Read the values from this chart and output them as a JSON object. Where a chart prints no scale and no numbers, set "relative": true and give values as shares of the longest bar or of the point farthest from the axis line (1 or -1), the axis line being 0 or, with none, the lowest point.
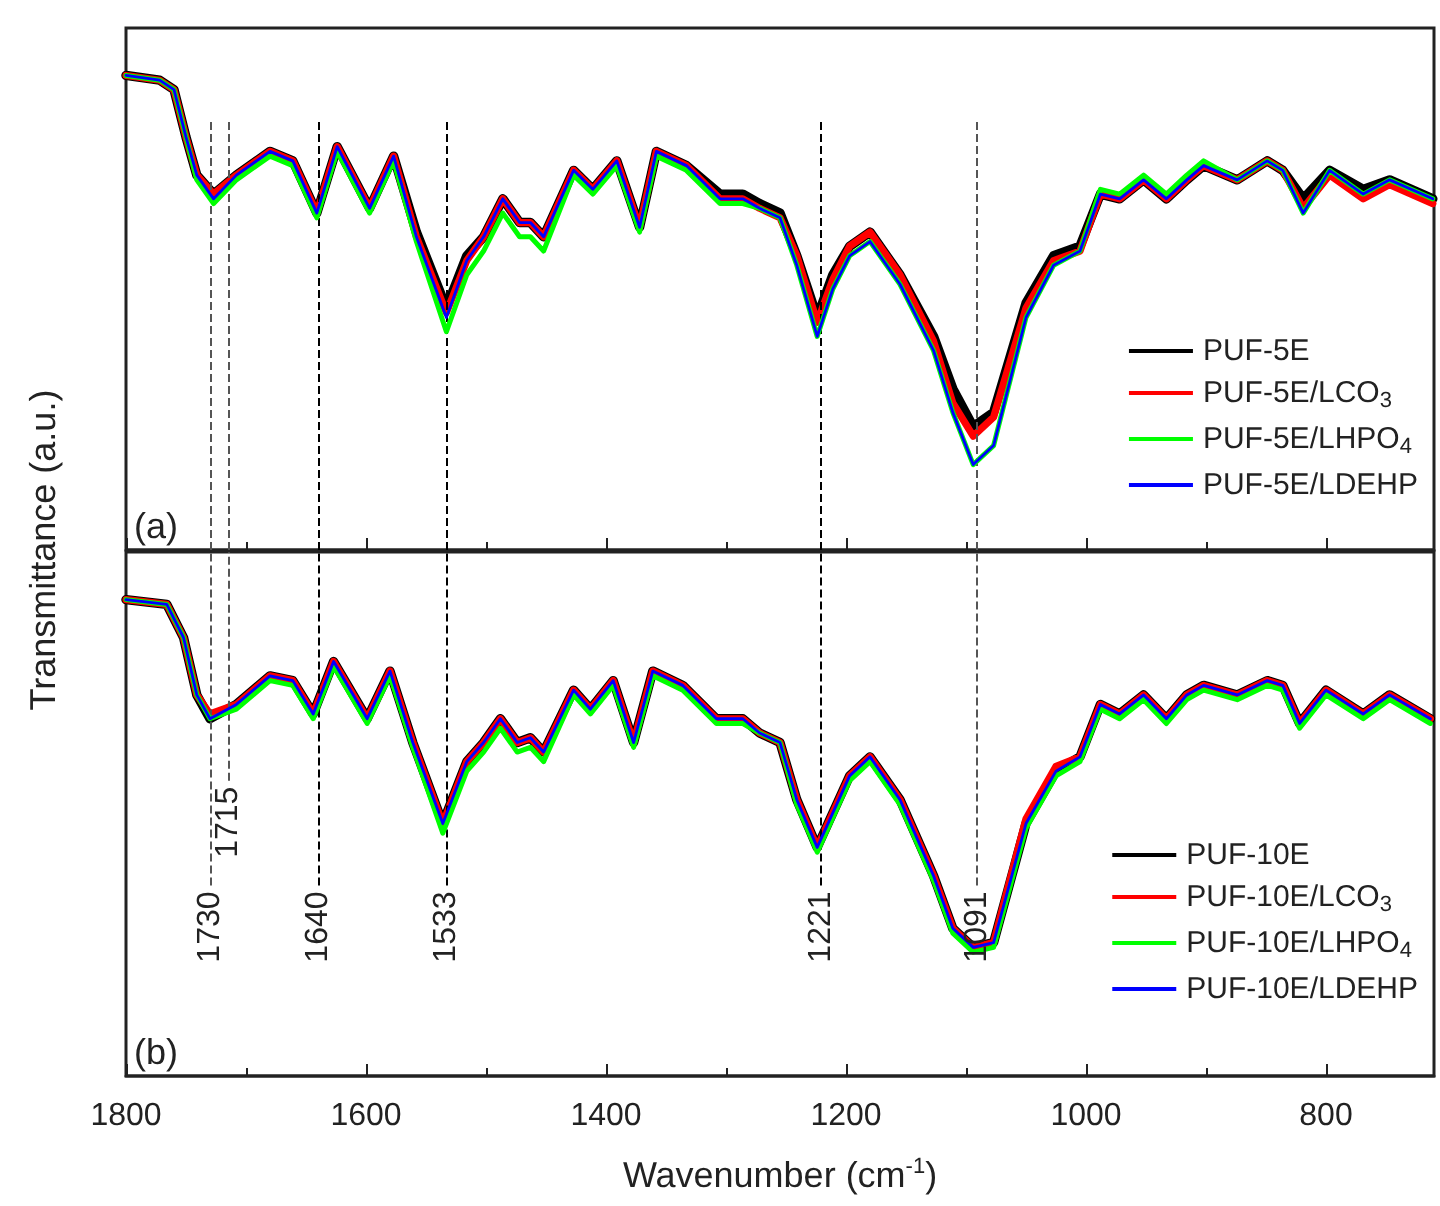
{
  "chart_data": [
    {
      "type": "line",
      "relative": true,
      "legend": "bottom right",
      "tick_labels": false,
      "ylabel": "Transmittance (a.u.)",
      "annotations": [
        "(a)"
      ],
      "xlim": [
        1800,
        710
      ],
      "xticks": [
        1800,
        1600,
        1400,
        1200,
        1000,
        800
      ],
      "x": [
        1800,
        1772,
        1760,
        1750,
        1741,
        1727,
        1708,
        1680,
        1661,
        1641,
        1624,
        1597,
        1577,
        1558,
        1533,
        1516,
        1502,
        1486,
        1472,
        1463,
        1452,
        1427,
        1411,
        1391,
        1372,
        1358,
        1333,
        1305,
        1286,
        1272,
        1255,
        1241,
        1224,
        1211,
        1197,
        1180,
        1155,
        1127,
        1111,
        1094,
        1077,
        1050,
        1027,
        1005,
        988,
        972,
        952,
        933,
        916,
        902,
        874,
        849,
        836,
        819,
        797,
        769,
        747,
        711
      ],
      "ref_lines": [
        {
          "axis": "x",
          "value": 1730,
          "color": "#555555",
          "line_style": "dashed"
        },
        {
          "axis": "x",
          "value": 1715,
          "color": "#555555",
          "line_style": "dashed"
        },
        {
          "axis": "x",
          "value": 1640,
          "color": "#000000",
          "line_style": "dashed"
        },
        {
          "axis": "x",
          "value": 1533,
          "color": "#000000",
          "line_style": "dashed"
        },
        {
          "axis": "x",
          "value": 1221,
          "color": "#000000",
          "line_style": "dashed"
        },
        {
          "axis": "x",
          "value": 1091,
          "color": "#555555",
          "line_style": "dashed"
        }
      ],
      "series": [
        {
          "name": "PUF-5E",
          "color": "#000000",
          "values": [
            1.0,
            0.99,
            0.97,
            0.87,
            0.79,
            0.75,
            0.79,
            0.84,
            0.82,
            0.71,
            0.85,
            0.72,
            0.83,
            0.67,
            0.51,
            0.62,
            0.66,
            0.74,
            0.69,
            0.69,
            0.66,
            0.8,
            0.76,
            0.82,
            0.68,
            0.84,
            0.81,
            0.75,
            0.75,
            0.73,
            0.71,
            0.62,
            0.49,
            0.58,
            0.64,
            0.67,
            0.58,
            0.45,
            0.34,
            0.26,
            0.29,
            0.52,
            0.62,
            0.64,
            0.75,
            0.74,
            0.78,
            0.74,
            0.78,
            0.81,
            0.78,
            0.82,
            0.8,
            0.74,
            0.8,
            0.76,
            0.78,
            0.74
          ]
        },
        {
          "name": "PUF-5E/LCO$_{3}$",
          "color": "#ff0000",
          "values": [
            1.0,
            0.99,
            0.97,
            0.87,
            0.79,
            0.75,
            0.79,
            0.84,
            0.82,
            0.71,
            0.85,
            0.72,
            0.83,
            0.66,
            0.5,
            0.61,
            0.66,
            0.74,
            0.69,
            0.69,
            0.66,
            0.8,
            0.76,
            0.82,
            0.68,
            0.84,
            0.81,
            0.74,
            0.74,
            0.72,
            0.7,
            0.62,
            0.48,
            0.57,
            0.64,
            0.67,
            0.58,
            0.44,
            0.31,
            0.24,
            0.28,
            0.51,
            0.61,
            0.63,
            0.75,
            0.74,
            0.78,
            0.74,
            0.78,
            0.81,
            0.78,
            0.82,
            0.8,
            0.72,
            0.79,
            0.74,
            0.77,
            0.73
          ]
        },
        {
          "name": "PUF-5E/LHPO$_{4}$",
          "color": "#00ff00",
          "values": [
            1.0,
            0.99,
            0.97,
            0.87,
            0.78,
            0.73,
            0.78,
            0.83,
            0.81,
            0.7,
            0.84,
            0.71,
            0.82,
            0.65,
            0.46,
            0.58,
            0.63,
            0.71,
            0.66,
            0.66,
            0.63,
            0.79,
            0.75,
            0.81,
            0.67,
            0.83,
            0.8,
            0.73,
            0.73,
            0.72,
            0.7,
            0.6,
            0.45,
            0.55,
            0.62,
            0.65,
            0.56,
            0.42,
            0.29,
            0.18,
            0.22,
            0.49,
            0.6,
            0.63,
            0.76,
            0.75,
            0.79,
            0.75,
            0.79,
            0.82,
            0.78,
            0.82,
            0.8,
            0.71,
            0.8,
            0.75,
            0.78,
            0.74
          ]
        },
        {
          "name": "PUF-5E/LDEHP",
          "color": "#0000ff",
          "values": [
            1.0,
            0.99,
            0.97,
            0.87,
            0.79,
            0.74,
            0.79,
            0.84,
            0.82,
            0.71,
            0.85,
            0.72,
            0.83,
            0.66,
            0.49,
            0.61,
            0.66,
            0.74,
            0.69,
            0.69,
            0.66,
            0.8,
            0.76,
            0.82,
            0.68,
            0.84,
            0.81,
            0.74,
            0.74,
            0.72,
            0.7,
            0.6,
            0.45,
            0.55,
            0.62,
            0.65,
            0.56,
            0.42,
            0.29,
            0.18,
            0.22,
            0.49,
            0.6,
            0.63,
            0.75,
            0.74,
            0.78,
            0.74,
            0.78,
            0.81,
            0.78,
            0.82,
            0.8,
            0.71,
            0.8,
            0.75,
            0.78,
            0.74
          ]
        }
      ]
    },
    {
      "type": "line",
      "relative": true,
      "legend": "bottom right",
      "tick_labels": "x",
      "xlabel": "Wavenumber (cm$^{-1}$)",
      "annotations": [
        "(b)"
      ],
      "xlim": [
        1800,
        710
      ],
      "xticks": [
        1800,
        1600,
        1400,
        1200,
        1000,
        800
      ],
      "x": [
        1800,
        1766,
        1752,
        1741,
        1730,
        1708,
        1680,
        1661,
        1644,
        1627,
        1599,
        1580,
        1561,
        1536,
        1516,
        1502,
        1488,
        1474,
        1463,
        1452,
        1427,
        1413,
        1394,
        1377,
        1361,
        1336,
        1308,
        1286,
        1272,
        1255,
        1241,
        1224,
        1197,
        1180,
        1155,
        1127,
        1111,
        1094,
        1077,
        1050,
        1025,
        1005,
        988,
        972,
        952,
        933,
        916,
        902,
        874,
        849,
        836,
        822,
        800,
        769,
        747,
        713
      ],
      "ref_lines": [
        {
          "axis": "x",
          "value": 1730,
          "label": "1730",
          "color": "#555555",
          "line_style": "dashed"
        },
        {
          "axis": "x",
          "value": 1715,
          "label": "1715",
          "color": "#555555",
          "line_style": "dashed"
        },
        {
          "axis": "x",
          "value": 1640,
          "label": "1640",
          "color": "#000000",
          "line_style": "dashed"
        },
        {
          "axis": "x",
          "value": 1533,
          "label": "1533",
          "color": "#000000",
          "line_style": "dashed"
        },
        {
          "axis": "x",
          "value": 1221,
          "label": "1221",
          "color": "#000000",
          "line_style": "dashed"
        },
        {
          "axis": "x",
          "value": 1091,
          "label": "1091",
          "color": "#555555",
          "line_style": "dashed"
        }
      ],
      "series": [
        {
          "name": "PUF-10E",
          "color": "#000000",
          "values": [
            1.0,
            0.99,
            0.92,
            0.8,
            0.75,
            0.78,
            0.84,
            0.83,
            0.76,
            0.87,
            0.75,
            0.85,
            0.7,
            0.53,
            0.66,
            0.7,
            0.75,
            0.7,
            0.71,
            0.68,
            0.81,
            0.77,
            0.83,
            0.7,
            0.85,
            0.82,
            0.75,
            0.75,
            0.72,
            0.7,
            0.58,
            0.48,
            0.63,
            0.67,
            0.58,
            0.42,
            0.31,
            0.27,
            0.28,
            0.53,
            0.64,
            0.67,
            0.78,
            0.76,
            0.8,
            0.75,
            0.8,
            0.82,
            0.8,
            0.83,
            0.82,
            0.74,
            0.81,
            0.76,
            0.8,
            0.75
          ]
        },
        {
          "name": "PUF-10E/LCO$_{3}$",
          "color": "#ff0000",
          "values": [
            1.0,
            0.99,
            0.92,
            0.8,
            0.76,
            0.78,
            0.84,
            0.83,
            0.76,
            0.87,
            0.75,
            0.85,
            0.7,
            0.53,
            0.66,
            0.7,
            0.75,
            0.7,
            0.71,
            0.68,
            0.81,
            0.77,
            0.83,
            0.7,
            0.85,
            0.82,
            0.75,
            0.75,
            0.72,
            0.7,
            0.58,
            0.48,
            0.63,
            0.67,
            0.58,
            0.42,
            0.31,
            0.27,
            0.28,
            0.54,
            0.65,
            0.67,
            0.78,
            0.76,
            0.8,
            0.75,
            0.8,
            0.82,
            0.8,
            0.83,
            0.82,
            0.74,
            0.81,
            0.76,
            0.8,
            0.75
          ]
        },
        {
          "name": "PUF-10E/LHPO$_{4}$",
          "color": "#00ff00",
          "values": [
            1.0,
            0.99,
            0.92,
            0.8,
            0.75,
            0.77,
            0.83,
            0.82,
            0.75,
            0.86,
            0.74,
            0.84,
            0.69,
            0.51,
            0.64,
            0.68,
            0.73,
            0.68,
            0.69,
            0.66,
            0.8,
            0.76,
            0.82,
            0.69,
            0.84,
            0.81,
            0.74,
            0.74,
            0.72,
            0.7,
            0.57,
            0.47,
            0.62,
            0.66,
            0.57,
            0.41,
            0.3,
            0.26,
            0.27,
            0.52,
            0.63,
            0.66,
            0.77,
            0.75,
            0.79,
            0.74,
            0.79,
            0.81,
            0.79,
            0.82,
            0.81,
            0.73,
            0.8,
            0.75,
            0.79,
            0.74
          ]
        },
        {
          "name": "PUF-10E/LDEHP",
          "color": "#0000ff",
          "values": [
            1.0,
            0.99,
            0.92,
            0.8,
            0.75,
            0.78,
            0.84,
            0.83,
            0.76,
            0.87,
            0.75,
            0.85,
            0.7,
            0.53,
            0.66,
            0.7,
            0.75,
            0.7,
            0.71,
            0.68,
            0.81,
            0.77,
            0.83,
            0.7,
            0.85,
            0.82,
            0.75,
            0.75,
            0.72,
            0.7,
            0.58,
            0.48,
            0.63,
            0.67,
            0.58,
            0.42,
            0.31,
            0.27,
            0.28,
            0.53,
            0.64,
            0.67,
            0.78,
            0.76,
            0.8,
            0.75,
            0.8,
            0.82,
            0.8,
            0.83,
            0.82,
            0.74,
            0.81,
            0.76,
            0.8,
            0.75
          ]
        }
      ]
    }
  ]
}
